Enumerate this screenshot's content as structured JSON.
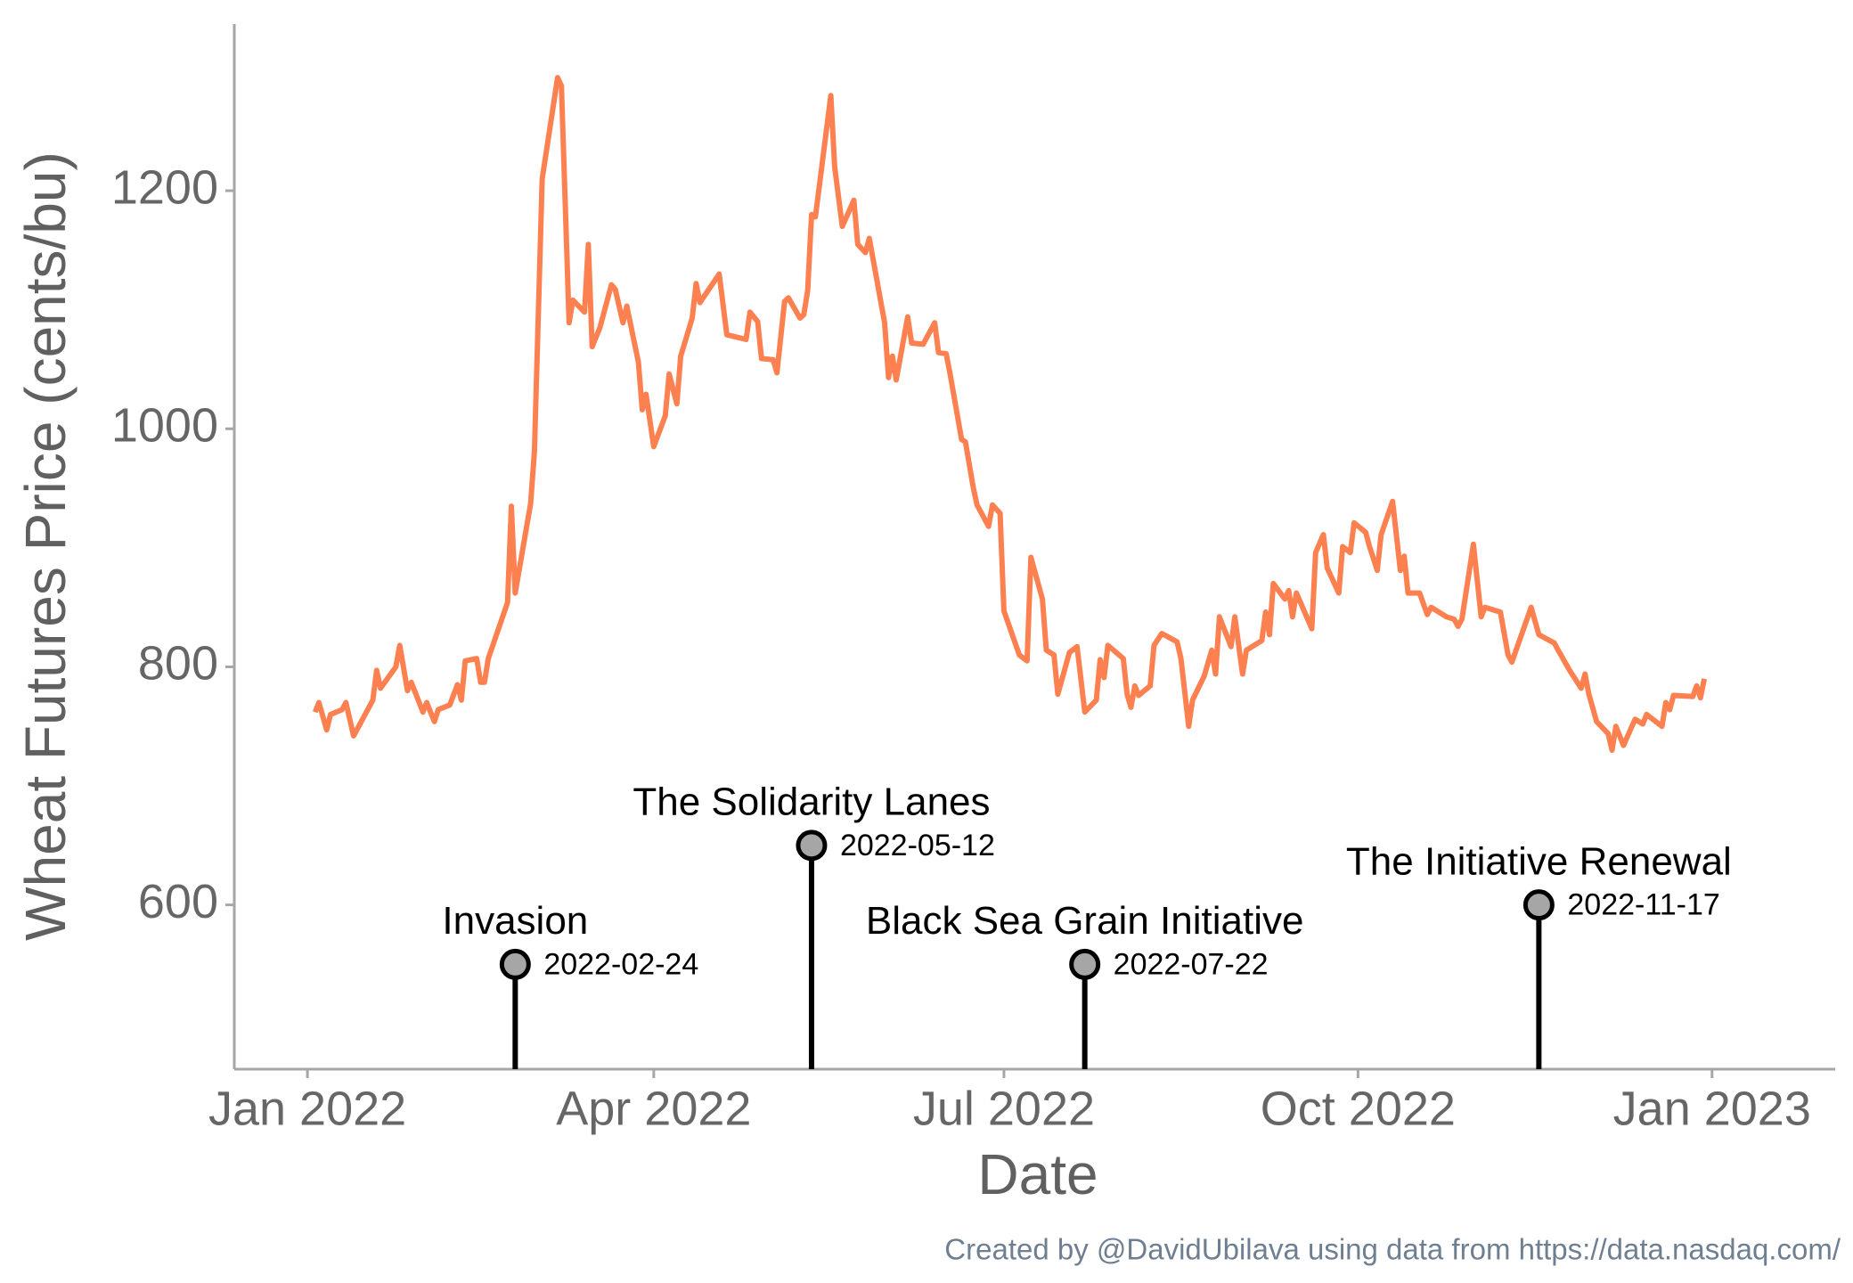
{
  "chart_data": {
    "type": "line",
    "xlabel": "Date",
    "ylabel": "Wheat Futures Price (cents/bu)",
    "caption": "Created by @DavidUbilava using data from https://data.nasdaq.com/",
    "xlim": [
      "2021-12-13",
      "2023-02-02"
    ],
    "xticks": [
      {
        "value": "2022-01-01",
        "label": "Jan 2022"
      },
      {
        "value": "2022-04-01",
        "label": "Apr 2022"
      },
      {
        "value": "2022-07-01",
        "label": "Jul 2022"
      },
      {
        "value": "2022-10-01",
        "label": "Oct 2022"
      },
      {
        "value": "2023-01-01",
        "label": "Jan 2023"
      }
    ],
    "ylim": [
      462,
      1340
    ],
    "yticks": [
      600,
      800,
      1000,
      1200
    ],
    "grid": false,
    "x": [
      "2022-01-03",
      "2022-01-04",
      "2022-01-06",
      "2022-01-07",
      "2022-01-10",
      "2022-01-11",
      "2022-01-13",
      "2022-01-18",
      "2022-01-19",
      "2022-01-20",
      "2022-01-24",
      "2022-01-25",
      "2022-01-27",
      "2022-01-28",
      "2022-01-31",
      "2022-02-01",
      "2022-02-03",
      "2022-02-04",
      "2022-02-07",
      "2022-02-09",
      "2022-02-10",
      "2022-02-11",
      "2022-02-14",
      "2022-02-15",
      "2022-02-16",
      "2022-02-17",
      "2022-02-22",
      "2022-02-23",
      "2022-02-24",
      "2022-02-28",
      "2022-03-01",
      "2022-03-03",
      "2022-03-07",
      "2022-03-08",
      "2022-03-10",
      "2022-03-11",
      "2022-03-14",
      "2022-03-15",
      "2022-03-16",
      "2022-03-18",
      "2022-03-21",
      "2022-03-22",
      "2022-03-24",
      "2022-03-25",
      "2022-03-28",
      "2022-03-29",
      "2022-03-30",
      "2022-04-01",
      "2022-04-04",
      "2022-04-05",
      "2022-04-07",
      "2022-04-08",
      "2022-04-11",
      "2022-04-12",
      "2022-04-13",
      "2022-04-18",
      "2022-04-20",
      "2022-04-25",
      "2022-04-26",
      "2022-04-28",
      "2022-04-29",
      "2022-05-02",
      "2022-05-03",
      "2022-05-05",
      "2022-05-06",
      "2022-05-09",
      "2022-05-10",
      "2022-05-11",
      "2022-05-12",
      "2022-05-13",
      "2022-05-17",
      "2022-05-18",
      "2022-05-20",
      "2022-05-23",
      "2022-05-24",
      "2022-05-26",
      "2022-05-27",
      "2022-05-31",
      "2022-06-01",
      "2022-06-02",
      "2022-06-03",
      "2022-06-06",
      "2022-06-07",
      "2022-06-10",
      "2022-06-13",
      "2022-06-14",
      "2022-06-16",
      "2022-06-17",
      "2022-06-20",
      "2022-06-21",
      "2022-06-23",
      "2022-06-24",
      "2022-06-27",
      "2022-06-28",
      "2022-06-30",
      "2022-07-01",
      "2022-07-05",
      "2022-07-07",
      "2022-07-08",
      "2022-07-11",
      "2022-07-12",
      "2022-07-14",
      "2022-07-15",
      "2022-07-18",
      "2022-07-20",
      "2022-07-22",
      "2022-07-25",
      "2022-07-26",
      "2022-07-27",
      "2022-07-28",
      "2022-08-01",
      "2022-08-02",
      "2022-08-03",
      "2022-08-04",
      "2022-08-05",
      "2022-08-08",
      "2022-08-09",
      "2022-08-11",
      "2022-08-15",
      "2022-08-16",
      "2022-08-18",
      "2022-08-19",
      "2022-08-22",
      "2022-08-24",
      "2022-08-25",
      "2022-08-26",
      "2022-08-29",
      "2022-08-30",
      "2022-09-01",
      "2022-09-02",
      "2022-09-06",
      "2022-09-07",
      "2022-09-08",
      "2022-09-09",
      "2022-09-12",
      "2022-09-13",
      "2022-09-14",
      "2022-09-15",
      "2022-09-19",
      "2022-09-20",
      "2022-09-22",
      "2022-09-23",
      "2022-09-26",
      "2022-09-27",
      "2022-09-29",
      "2022-09-30",
      "2022-10-03",
      "2022-10-04",
      "2022-10-06",
      "2022-10-07",
      "2022-10-10",
      "2022-10-12",
      "2022-10-13",
      "2022-10-14",
      "2022-10-17",
      "2022-10-19",
      "2022-10-20",
      "2022-10-24",
      "2022-10-26",
      "2022-10-27",
      "2022-10-28",
      "2022-10-31",
      "2022-11-02",
      "2022-11-03",
      "2022-11-07",
      "2022-11-09",
      "2022-11-10",
      "2022-11-15",
      "2022-11-17",
      "2022-11-21",
      "2022-11-22",
      "2022-11-25",
      "2022-11-28",
      "2022-11-29",
      "2022-11-30",
      "2022-12-02",
      "2022-12-05",
      "2022-12-06",
      "2022-12-07",
      "2022-12-09",
      "2022-12-12",
      "2022-12-14",
      "2022-12-15",
      "2022-12-19",
      "2022-12-20",
      "2022-12-21",
      "2022-12-22",
      "2022-12-27",
      "2022-12-28",
      "2022-12-29",
      "2022-12-30"
    ],
    "series": [
      {
        "name": "Wheat futures",
        "color": "#fc8050",
        "values": [
          762,
          770,
          747,
          760,
          764,
          770,
          742,
          772,
          797,
          782,
          800,
          818,
          780,
          787,
          762,
          770,
          754,
          764,
          768,
          785,
          772,
          805,
          807,
          787,
          787,
          807,
          854,
          935,
          862,
          937,
          981,
          1210,
          1295,
          1288,
          1089,
          1108,
          1098,
          1155,
          1069,
          1085,
          1121,
          1117,
          1089,
          1103,
          1056,
          1016,
          1029,
          985,
          1011,
          1046,
          1021,
          1061,
          1093,
          1122,
          1106,
          1130,
          1079,
          1075,
          1098,
          1090,
          1059,
          1058,
          1047,
          1107,
          1110,
          1093,
          1096,
          1116,
          1180,
          1178,
          1280,
          1220,
          1170,
          1192,
          1155,
          1148,
          1160,
          1089,
          1043,
          1061,
          1041,
          1094,
          1072,
          1071,
          1089,
          1064,
          1063,
          1046,
          991,
          989,
          951,
          936,
          918,
          936,
          929,
          847,
          810,
          805,
          892,
          857,
          814,
          810,
          777,
          812,
          817,
          762,
          772,
          806,
          791,
          818,
          807,
          777,
          766,
          784,
          776,
          784,
          818,
          828,
          821,
          807,
          750,
          772,
          792,
          814,
          794,
          842,
          817,
          842,
          794,
          814,
          822,
          846,
          827,
          870,
          857,
          864,
          842,
          862,
          832,
          896,
          911,
          883,
          862,
          901,
          896,
          921,
          913,
          901,
          881,
          911,
          939,
          881,
          893,
          862,
          862,
          844,
          850,
          842,
          840,
          834,
          840,
          903,
          842,
          850,
          846,
          810,
          804,
          850,
          827,
          820,
          814,
          797,
          782,
          794,
          777,
          754,
          744,
          730,
          750,
          734,
          756,
          752,
          760,
          750,
          770,
          764,
          776,
          775,
          784,
          774,
          790
        ]
      }
    ],
    "annotations": [
      {
        "date": "2022-02-24",
        "label": "Invasion",
        "y": 550
      },
      {
        "date": "2022-05-12",
        "label": "The Solidarity Lanes",
        "y": 650
      },
      {
        "date": "2022-07-22",
        "label": "Black Sea Grain Initiative",
        "y": 550
      },
      {
        "date": "2022-11-17",
        "label": "The Initiative Renewal",
        "y": 600
      }
    ]
  }
}
